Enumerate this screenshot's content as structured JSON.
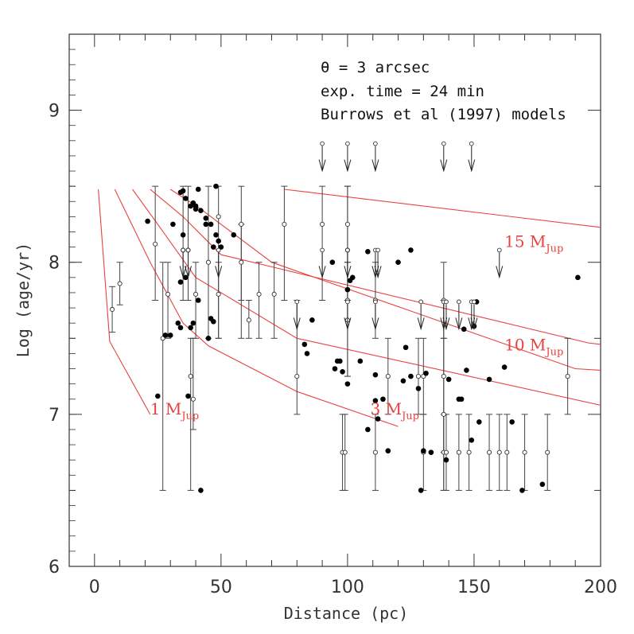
{
  "chart_data": {
    "type": "scatter",
    "xlabel": "Distance (pc)",
    "ylabel": "Log (age/yr)",
    "xlim": [
      -10,
      200
    ],
    "ylim": [
      6,
      9.5
    ],
    "xticks": [
      0,
      50,
      100,
      150,
      200
    ],
    "yticks": [
      6,
      7,
      8,
      9
    ],
    "annotations": [
      "θ = 3 arcsec",
      "exp. time = 24 min",
      "Burrows et al (1997) models"
    ],
    "colors": {
      "curve": "#e8423f",
      "points": "#000000",
      "errorbars": "#444444"
    },
    "curves": [
      {
        "label": "1 M",
        "label_sub": "Jup",
        "points": [
          [
            1.5,
            8.48
          ],
          [
            6,
            7.48
          ],
          [
            22,
            7.0
          ]
        ]
      },
      {
        "label": "3 M",
        "label_sub": "Jup",
        "points": [
          [
            8,
            8.48
          ],
          [
            22,
            8.0
          ],
          [
            35,
            7.6
          ],
          [
            45,
            7.45
          ],
          [
            80,
            7.15
          ],
          [
            120,
            6.92
          ]
        ]
      },
      {
        "label": "10 M",
        "label_sub": "Jup",
        "points": [
          [
            15,
            8.48
          ],
          [
            25,
            8.25
          ],
          [
            40,
            7.9
          ],
          [
            80,
            7.5
          ],
          [
            200,
            7.06
          ]
        ]
      },
      {
        "label": "15 M",
        "label_sub": "Jup",
        "points": [
          [
            22,
            8.48
          ],
          [
            35,
            8.3
          ],
          [
            50,
            8.05
          ],
          [
            70,
            7.97
          ],
          [
            195,
            7.47
          ],
          [
            200,
            7.46
          ]
        ]
      },
      {
        "label": "",
        "label_sub": "",
        "points": [
          [
            30,
            8.48
          ],
          [
            42,
            8.35
          ],
          [
            70,
            8.0
          ],
          [
            190,
            7.3
          ],
          [
            200,
            7.29
          ]
        ]
      },
      {
        "label": "",
        "label_sub": "",
        "points": [
          [
            75,
            8.48
          ],
          [
            200,
            8.23
          ]
        ]
      }
    ],
    "curve_labels": [
      {
        "text": "1 M",
        "sub": "Jup",
        "x": 22,
        "y": 7.0
      },
      {
        "text": "3 M",
        "sub": "Jup",
        "x": 109,
        "y": 7.0
      },
      {
        "text": "10 M",
        "sub": "Jup",
        "x": 162,
        "y": 7.42
      },
      {
        "text": "15 M",
        "sub": "Jup",
        "x": 162,
        "y": 8.1
      }
    ],
    "filled_points": [
      [
        21,
        8.27
      ],
      [
        25,
        7.12
      ],
      [
        28,
        7.52
      ],
      [
        30,
        7.52
      ],
      [
        31,
        8.25
      ],
      [
        33,
        7.6
      ],
      [
        34,
        8.46
      ],
      [
        34,
        7.57
      ],
      [
        35,
        8.47
      ],
      [
        35,
        8.18
      ],
      [
        36,
        8.42
      ],
      [
        36,
        7.9
      ],
      [
        37,
        7.12
      ],
      [
        38,
        7.57
      ],
      [
        38,
        8.37
      ],
      [
        39,
        8.39
      ],
      [
        39,
        7.6
      ],
      [
        40,
        8.35
      ],
      [
        40,
        8.37
      ],
      [
        41,
        8.48
      ],
      [
        41,
        7.75
      ],
      [
        42,
        8.34
      ],
      [
        42,
        6.5
      ],
      [
        44,
        8.25
      ],
      [
        44,
        8.29
      ],
      [
        45,
        7.5
      ],
      [
        46,
        8.25
      ],
      [
        46,
        7.63
      ],
      [
        47,
        7.61
      ],
      [
        47,
        8.1
      ],
      [
        48,
        8.5
      ],
      [
        48,
        8.18
      ],
      [
        49,
        8.14
      ],
      [
        50,
        8.1
      ],
      [
        55,
        8.18
      ],
      [
        34,
        7.87
      ],
      [
        86,
        7.62
      ],
      [
        83,
        7.46
      ],
      [
        84,
        7.4
      ],
      [
        94,
        8.0
      ],
      [
        95,
        7.3
      ],
      [
        96,
        7.35
      ],
      [
        97,
        7.35
      ],
      [
        98,
        7.28
      ],
      [
        100,
        7.2
      ],
      [
        100,
        7.82
      ],
      [
        101,
        7.88
      ],
      [
        102,
        7.9
      ],
      [
        105,
        7.35
      ],
      [
        108,
        6.9
      ],
      [
        108,
        8.07
      ],
      [
        111,
        7.09
      ],
      [
        111,
        7.26
      ],
      [
        112,
        6.97
      ],
      [
        114,
        7.1
      ],
      [
        116,
        6.76
      ],
      [
        120,
        8.0
      ],
      [
        122,
        7.22
      ],
      [
        123,
        7.44
      ],
      [
        125,
        8.08
      ],
      [
        125,
        7.25
      ],
      [
        128,
        7.17
      ],
      [
        129,
        6.5
      ],
      [
        130,
        6.76
      ],
      [
        131,
        7.27
      ],
      [
        133,
        6.75
      ],
      [
        139,
        6.7
      ],
      [
        140,
        7.23
      ],
      [
        144,
        7.1
      ],
      [
        145,
        7.1
      ],
      [
        146,
        7.56
      ],
      [
        147,
        7.29
      ],
      [
        149,
        6.83
      ],
      [
        150,
        7.58
      ],
      [
        151,
        7.74
      ],
      [
        152,
        6.95
      ],
      [
        156,
        7.23
      ],
      [
        162,
        7.31
      ],
      [
        165,
        6.95
      ],
      [
        169,
        6.5
      ],
      [
        177,
        6.54
      ],
      [
        191,
        7.9
      ]
    ],
    "open_points_with_errors": [
      [
        7,
        7.69,
        7.54,
        7.84
      ],
      [
        10,
        7.86,
        7.72,
        8.0
      ],
      [
        24,
        8.12,
        7.75,
        8.5
      ],
      [
        27,
        7.5,
        6.5,
        8.0
      ],
      [
        29,
        7.79,
        7.5,
        8.0
      ],
      [
        35,
        8.08,
        7.75,
        8.5
      ],
      [
        37,
        8.08,
        7.75,
        8.5
      ],
      [
        38,
        7.25,
        6.5,
        7.5
      ],
      [
        39,
        7.1,
        6.9,
        7.5
      ],
      [
        40,
        7.79,
        7.5,
        8.0
      ],
      [
        45,
        8.0,
        7.5,
        8.5
      ],
      [
        49,
        7.79,
        7.5,
        8.0
      ],
      [
        49,
        8.3,
        7.5,
        8.5
      ],
      [
        58,
        8.25,
        7.75,
        8.5
      ],
      [
        58,
        8.0,
        7.5,
        8.25
      ],
      [
        61,
        7.62,
        7.5,
        7.75
      ],
      [
        65,
        7.79,
        7.5,
        8.0
      ],
      [
        71,
        7.79,
        7.5,
        8.0
      ],
      [
        75,
        8.25,
        7.75,
        8.5
      ],
      [
        80,
        7.25,
        7.0,
        7.75
      ],
      [
        90,
        8.25,
        7.75,
        8.5
      ],
      [
        100,
        8.25,
        7.75,
        8.5
      ],
      [
        100,
        8.08,
        7.75,
        8.5
      ],
      [
        100,
        7.75,
        7.25,
        8.0
      ],
      [
        100,
        7.62,
        7.25,
        8.0
      ],
      [
        111,
        7.75,
        7.5,
        8.0
      ],
      [
        116,
        7.25,
        7.0,
        7.5
      ],
      [
        128,
        7.25,
        7.0,
        7.5
      ],
      [
        130,
        7.25,
        7.0,
        7.5
      ],
      [
        138,
        7.0,
        6.5,
        7.5
      ],
      [
        138,
        7.25,
        6.75,
        7.75
      ],
      [
        138,
        7.75,
        7.5,
        8.0
      ],
      [
        187,
        7.25,
        7.0,
        7.5
      ],
      [
        98,
        6.75,
        6.5,
        7.0
      ],
      [
        99,
        6.75,
        6.5,
        7.0
      ],
      [
        111,
        6.75,
        6.5,
        7.0
      ],
      [
        130,
        6.75,
        6.5,
        7.0
      ],
      [
        138,
        6.75,
        6.5,
        7.0
      ],
      [
        139,
        6.75,
        6.5,
        7.0
      ],
      [
        144,
        6.75,
        6.5,
        7.0
      ],
      [
        148,
        6.75,
        6.5,
        7.0
      ],
      [
        156,
        6.75,
        6.5,
        7.0
      ],
      [
        160,
        6.75,
        6.5,
        7.0
      ],
      [
        163,
        6.75,
        6.5,
        7.0
      ],
      [
        170,
        6.75,
        6.5,
        7.0
      ],
      [
        179,
        6.75,
        6.5,
        7.0
      ]
    ],
    "upper_limits": [
      [
        90,
        8.78
      ],
      [
        100,
        8.78
      ],
      [
        111,
        8.78
      ],
      [
        138,
        8.78
      ],
      [
        149,
        8.78
      ],
      [
        160,
        8.08
      ],
      [
        35,
        8.08
      ],
      [
        37,
        8.08
      ],
      [
        49,
        8.08
      ],
      [
        90,
        8.08
      ],
      [
        100,
        8.08
      ],
      [
        111,
        8.08
      ],
      [
        112,
        8.08
      ],
      [
        80,
        7.74
      ],
      [
        100,
        7.74
      ],
      [
        111,
        7.74
      ],
      [
        129,
        7.74
      ],
      [
        138,
        7.74
      ],
      [
        139,
        7.74
      ],
      [
        144,
        7.74
      ],
      [
        149,
        7.74
      ],
      [
        150,
        7.74
      ]
    ]
  }
}
